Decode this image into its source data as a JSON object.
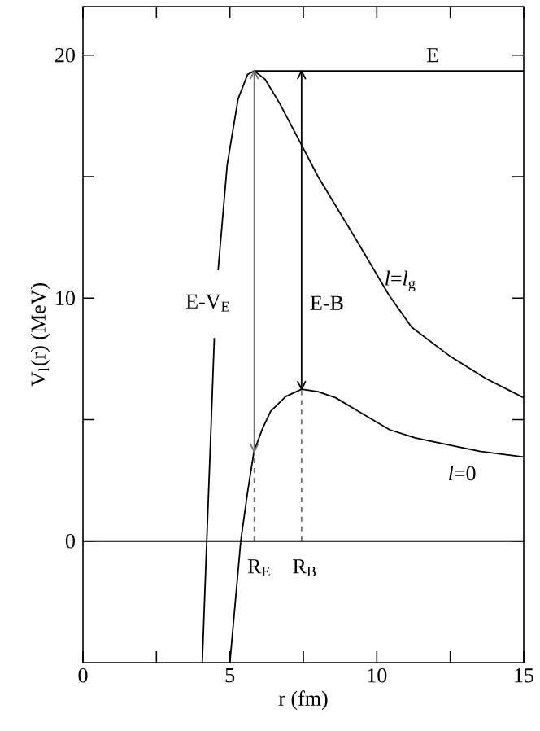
{
  "chart_data": {
    "type": "line",
    "xlabel": "r  (fm)",
    "ylabel": "V$_{l}$(r)  (MeV)",
    "xlim": [
      0,
      15
    ],
    "ylim": [
      -5,
      22
    ],
    "xticks": [
      0,
      {
        "value": 2.5,
        "label": null
      },
      5,
      {
        "value": 7.5,
        "label": null
      },
      10,
      {
        "value": 12.5,
        "label": null
      },
      15
    ],
    "yticks": [
      0,
      {
        "value": 5,
        "label": null
      },
      10,
      {
        "value": 15,
        "label": null
      },
      20
    ],
    "ref_lines": [
      {
        "axis": "y",
        "value": 0,
        "color": "#000000"
      }
    ],
    "series": [
      {
        "color": "#000000",
        "line_style": "solid",
        "x": [
          4.06,
          4.2,
          4.35,
          4.47,
          4.53,
          4.6,
          4.91,
          5.28,
          5.6,
          5.83,
          6.2,
          6.7,
          7.44,
          8.0,
          8.6,
          9.3,
          10.4,
          11.18,
          12.5,
          13.7,
          15
        ],
        "values": [
          -5,
          -0.4,
          4.4,
          8.36,
          null,
          11.15,
          15.5,
          18.2,
          19.2,
          19.35,
          19.0,
          18.0,
          16.3,
          15.0,
          13.8,
          12.4,
          10.15,
          8.81,
          7.6,
          6.7,
          5.9
        ]
      },
      {
        "color": "#000000",
        "line_style": "solid",
        "x": [
          5.0,
          5.2,
          5.37,
          5.6,
          5.82,
          6.1,
          6.39,
          6.9,
          7.44,
          8.0,
          8.6,
          9.5,
          10.44,
          11.3,
          12.29,
          13.5,
          15
        ],
        "values": [
          -5,
          -2.3,
          0,
          2.0,
          3.68,
          4.6,
          5.35,
          5.95,
          6.25,
          6.15,
          5.9,
          5.25,
          4.58,
          4.25,
          4.0,
          3.7,
          3.46
        ]
      },
      {
        "color": "#000000",
        "line_style": "solid",
        "x": [
          5.83,
          15
        ],
        "values": [
          19.35,
          19.35
        ]
      },
      {
        "color": "#707070",
        "line_style": "solid",
        "x": [
          5.83,
          5.83
        ],
        "values": [
          19.35,
          3.68
        ]
      },
      {
        "color": "#000000",
        "line_style": "solid",
        "x": [
          7.44,
          7.44
        ],
        "values": [
          19.35,
          6.25
        ]
      },
      {
        "color": "#707070",
        "line_style": "dashed",
        "x": [
          5.83,
          5.83
        ],
        "values": [
          0,
          3.68
        ]
      },
      {
        "color": "#707070",
        "line_style": "dashed",
        "x": [
          7.44,
          7.44
        ],
        "values": [
          0,
          6.25
        ]
      }
    ],
    "annotations": [
      "E",
      "*l*=*l*$_{g}$",
      "*l*=0",
      "E-V$_{E}$",
      "E-B",
      "R$_{E}$",
      "R$_{B}$"
    ]
  }
}
